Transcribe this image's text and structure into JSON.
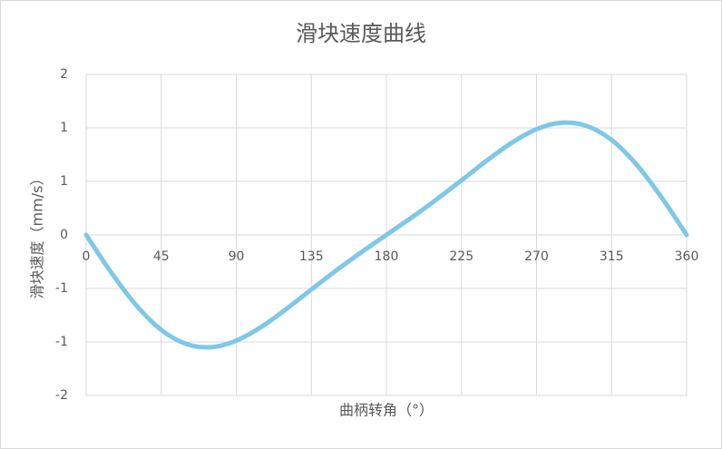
{
  "chart_data": {
    "type": "line",
    "title": "滑块速度曲线",
    "x_label": "曲柄转角（°）",
    "y_label": "滑块速度（mm/s）",
    "x": [
      0,
      15,
      30,
      45,
      60,
      75,
      90,
      105,
      120,
      135,
      150,
      165,
      180,
      195,
      210,
      225,
      240,
      255,
      270,
      285,
      300,
      315,
      330,
      345,
      360
    ],
    "series": [
      {
        "name": "滑块速度",
        "color": "#7fc7e8",
        "values": [
          0,
          -0.467,
          -0.876,
          -1.183,
          -1.358,
          -1.398,
          -1.317,
          -1.146,
          -0.923,
          -0.68,
          -0.441,
          -0.215,
          0,
          0.215,
          0.441,
          0.68,
          0.923,
          1.146,
          1.317,
          1.398,
          1.358,
          1.183,
          0.876,
          0.467,
          0
        ]
      }
    ],
    "xlim": [
      0,
      360
    ],
    "xticks": [
      0,
      45,
      90,
      135,
      180,
      225,
      270,
      315,
      360
    ],
    "ylim": [
      -2,
      2
    ],
    "yticks": [
      -2,
      {
        "value": -1.333,
        "label": "-1"
      },
      {
        "value": -0.667,
        "label": "-1"
      },
      0,
      {
        "value": 0.667,
        "label": "1"
      },
      {
        "value": 1.333,
        "label": "1"
      },
      2
    ],
    "grid": true
  }
}
